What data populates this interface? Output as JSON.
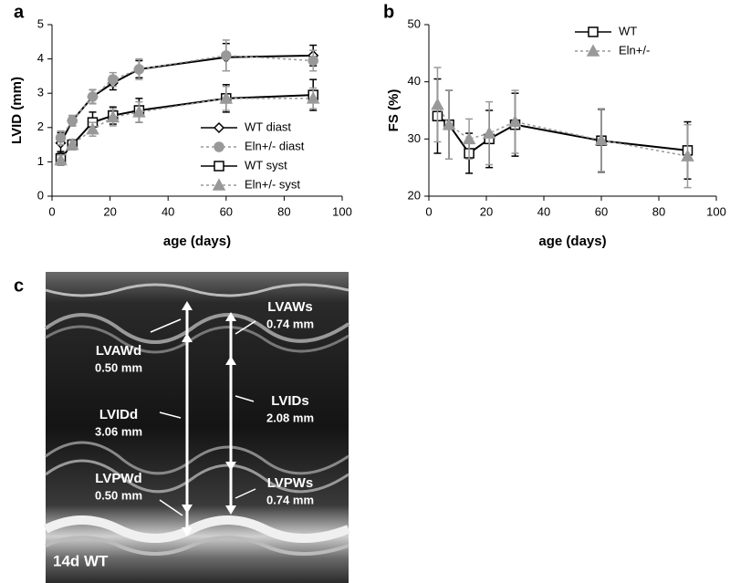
{
  "panels": [
    "a",
    "b",
    "c"
  ],
  "chart_data": [
    {
      "type": "line",
      "ylabel": "LVID (mm)",
      "xlabel": "age (days)",
      "x": [
        3,
        7,
        14,
        21,
        30,
        60,
        90
      ],
      "xlim": [
        0,
        100
      ],
      "xticks": [
        0,
        20,
        40,
        60,
        80,
        100
      ],
      "ylim": [
        0,
        5
      ],
      "yticks": [
        0,
        1,
        2,
        3,
        4,
        5
      ],
      "legend": "lower right",
      "series": [
        {
          "name": "WT diast",
          "color": "#000000",
          "marker": "diamond",
          "filled": false,
          "dashed": false,
          "values": [
            1.55,
            2.2,
            2.9,
            3.3,
            3.7,
            4.05,
            4.1
          ],
          "errors": [
            0.3,
            0.15,
            0.2,
            0.2,
            0.25,
            0.4,
            0.3
          ]
        },
        {
          "name": "Eln+/- diast",
          "color": "#999999",
          "marker": "circle",
          "filled": true,
          "dashed": true,
          "values": [
            1.7,
            2.2,
            2.9,
            3.4,
            3.7,
            4.1,
            3.95
          ],
          "errors": [
            0.2,
            0.15,
            0.2,
            0.2,
            0.3,
            0.45,
            0.3
          ]
        },
        {
          "name": "WT syst",
          "color": "#000000",
          "marker": "square",
          "filled": false,
          "dashed": false,
          "values": [
            1.1,
            1.5,
            2.15,
            2.35,
            2.5,
            2.85,
            2.95
          ],
          "errors": [
            0.2,
            0.15,
            0.3,
            0.25,
            0.35,
            0.4,
            0.45
          ]
        },
        {
          "name": "Eln+/- syst",
          "color": "#999999",
          "marker": "triangle",
          "filled": true,
          "dashed": true,
          "values": [
            1.05,
            1.5,
            1.95,
            2.3,
            2.45,
            2.85,
            2.85
          ],
          "errors": [
            0.15,
            0.15,
            0.2,
            0.25,
            0.3,
            0.35,
            0.3
          ]
        }
      ]
    },
    {
      "type": "line",
      "ylabel": "FS (%)",
      "xlabel": "age (days)",
      "x": [
        3,
        7,
        14,
        21,
        30,
        60,
        90
      ],
      "xlim": [
        0,
        100
      ],
      "xticks": [
        0,
        20,
        40,
        60,
        80,
        100
      ],
      "ylim": [
        20,
        50
      ],
      "yticks": [
        20,
        30,
        40,
        50
      ],
      "legend": "upper right",
      "series": [
        {
          "name": "WT",
          "color": "#000000",
          "marker": "square",
          "filled": false,
          "dashed": false,
          "values": [
            34,
            32.5,
            27.5,
            30,
            32.5,
            29.7,
            28
          ],
          "errors": [
            6.5,
            6,
            3.5,
            5,
            5.5,
            5.5,
            5
          ]
        },
        {
          "name": "Eln+/-",
          "color": "#999999",
          "marker": "triangle",
          "filled": true,
          "dashed": true,
          "values": [
            36,
            32.5,
            30,
            31,
            33,
            29.8,
            27
          ],
          "errors": [
            6.5,
            6,
            3.5,
            5.5,
            5.5,
            5.5,
            5.5
          ]
        }
      ]
    }
  ],
  "image": {
    "caption": "14d WT",
    "annotations": [
      {
        "label": "LVAWs",
        "value": "0.74 mm"
      },
      {
        "label": "LVAWd",
        "value": "0.50 mm"
      },
      {
        "label": "LVIDd",
        "value": "3.06 mm"
      },
      {
        "label": "LVIDs",
        "value": "2.08 mm"
      },
      {
        "label": "LVPWd",
        "value": "0.50 mm"
      },
      {
        "label": "LVPWs",
        "value": "0.74 mm"
      }
    ]
  }
}
